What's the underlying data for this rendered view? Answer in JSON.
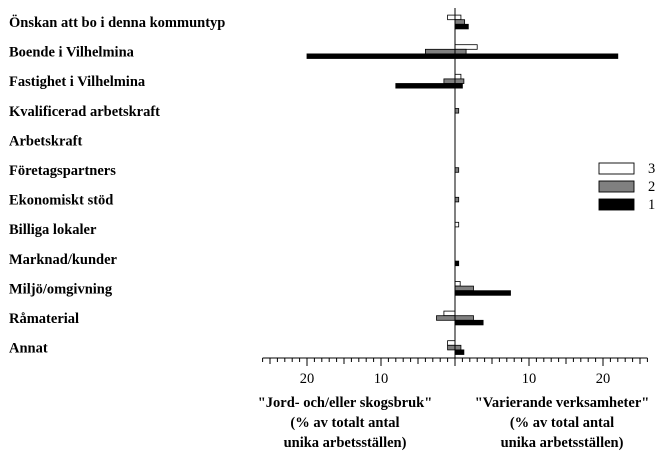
{
  "chart_data": {
    "type": "bar",
    "orientation": "horizontal",
    "layout": "back-to-back",
    "categories": [
      "Önskan att bo i denna kommuntyp",
      "Boende i Vilhelmina",
      "Fastighet i Vilhelmina",
      "Kvalificerad arbetskraft",
      "Arbetskraft",
      "Företagspartners",
      "Ekonomiskt stöd",
      "Billiga lokaler",
      "Marknad/kunder",
      "Miljö/omgivning",
      "Råmaterial",
      "Annat"
    ],
    "left_panel": {
      "xlabel_lines": [
        "\"Jord- och/eller skogsbruk\"",
        "(% av totalt antal",
        "unika arbetsställen)"
      ],
      "series": [
        {
          "name": "3",
          "values": [
            1,
            0,
            0,
            0,
            0,
            0,
            0,
            0,
            0,
            0,
            1.5,
            1
          ]
        },
        {
          "name": "2",
          "values": [
            0,
            4,
            1.5,
            0,
            0,
            0,
            0,
            0,
            0,
            0,
            2.5,
            1
          ]
        },
        {
          "name": "1",
          "values": [
            0,
            20,
            8,
            0,
            0,
            0,
            0,
            0,
            0,
            0,
            0,
            0
          ]
        }
      ]
    },
    "right_panel": {
      "xlabel_lines": [
        "\"Varierande verksamheter\"",
        "(% av total antal",
        "unika arbetsställen)"
      ],
      "series": [
        {
          "name": "3",
          "values": [
            0.8,
            3,
            0.8,
            0,
            0,
            0,
            0,
            0.5,
            0,
            0.7,
            0,
            0
          ]
        },
        {
          "name": "2",
          "values": [
            1.3,
            1.5,
            1.2,
            0.5,
            0,
            0.5,
            0.5,
            0,
            0,
            2.5,
            2.5,
            0.8
          ]
        },
        {
          "name": "1",
          "values": [
            1.8,
            22,
            1,
            0,
            0,
            0,
            0,
            0,
            0.5,
            7.5,
            3.8,
            1.2
          ]
        }
      ]
    },
    "xlim": [
      0,
      26
    ],
    "xticks": [
      "20",
      "10",
      "",
      "10",
      "20"
    ],
    "xtick_values": [
      -20,
      -10,
      0,
      10,
      20
    ],
    "legend": {
      "position": "right",
      "entries": [
        {
          "label": "3",
          "color": "#ffffff"
        },
        {
          "label": "2",
          "color": "#808080"
        },
        {
          "label": "1",
          "color": "#000000"
        }
      ]
    },
    "colors": {
      "3": "#ffffff",
      "2": "#808080",
      "1": "#000000"
    }
  }
}
